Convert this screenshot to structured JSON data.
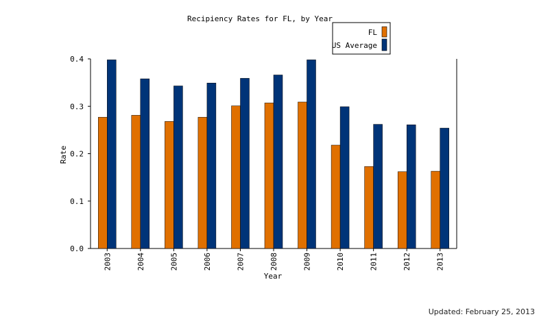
{
  "chart_data": {
    "type": "bar",
    "title": "Recipiency Rates for FL, by Year",
    "xlabel": "Year",
    "ylabel": "Rate",
    "ylim": [
      0,
      0.4
    ],
    "yticks": [
      "0.0",
      "0.1",
      "0.2",
      "0.3",
      "0.4"
    ],
    "categories": [
      "2003",
      "2004",
      "2005",
      "2006",
      "2007",
      "2008",
      "2009",
      "2010",
      "2011",
      "2012",
      "2013"
    ],
    "series": [
      {
        "name": "FL",
        "color": "#e07000",
        "values": [
          0.277,
          0.281,
          0.268,
          0.277,
          0.301,
          0.307,
          0.309,
          0.218,
          0.173,
          0.162,
          0.163
        ]
      },
      {
        "name": "US Average",
        "color": "#003478",
        "values": [
          0.398,
          0.358,
          0.343,
          0.349,
          0.359,
          0.366,
          0.398,
          0.299,
          0.262,
          0.261,
          0.254
        ]
      }
    ],
    "legend_position": "top-right",
    "grid": false
  },
  "footer": {
    "updated": "Updated: February 25, 2013"
  }
}
